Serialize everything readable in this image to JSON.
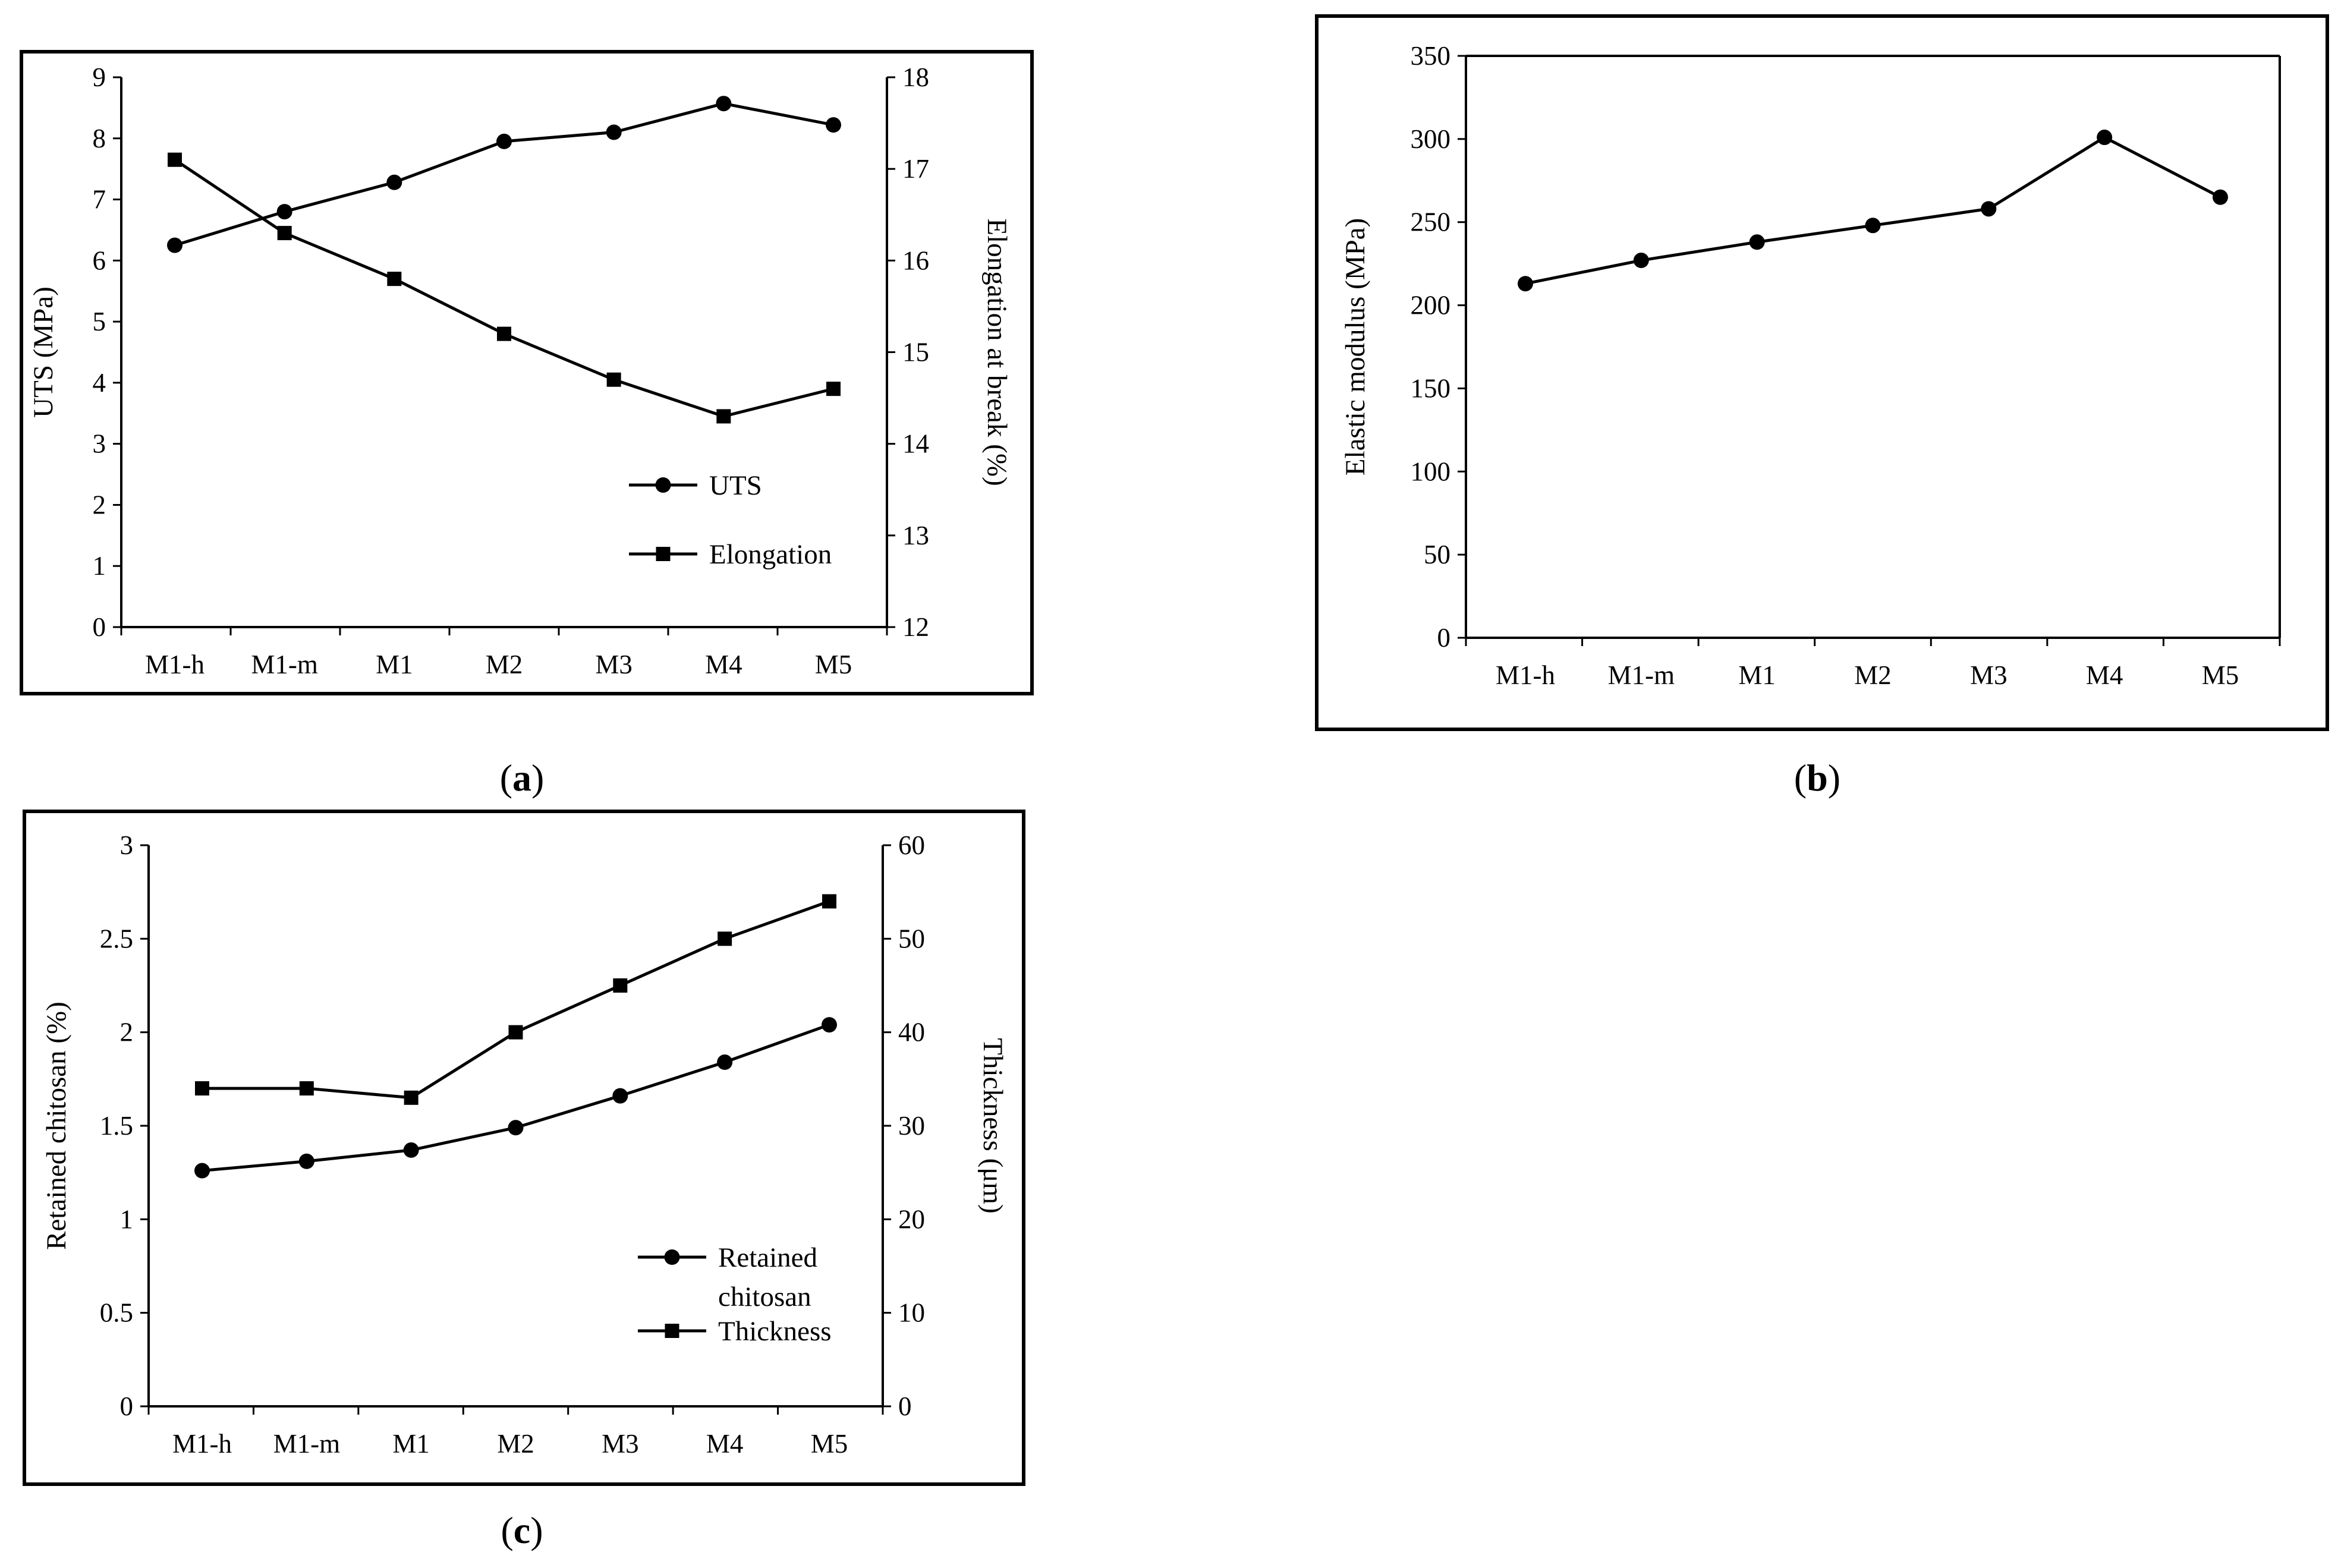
{
  "figure": {
    "colors": {
      "line": "#000000",
      "frame": "#000000",
      "background": "#ffffff"
    },
    "panel_labels": [
      {
        "prefix": "(",
        "letter": "a",
        "suffix": ")"
      },
      {
        "prefix": "(",
        "letter": "b",
        "suffix": ")"
      },
      {
        "prefix": "(",
        "letter": "c",
        "suffix": ")"
      }
    ]
  },
  "chart_data": [
    {
      "id": "a",
      "type": "line",
      "categories": [
        "M1-h",
        "M1-m",
        "M1",
        "M2",
        "M3",
        "M4",
        "M5"
      ],
      "title": "",
      "xlabel": "",
      "ylabel": "UTS (MPa)",
      "y2label": "Elongation at break (%)",
      "ylim": [
        0,
        9
      ],
      "yticks": [
        "0",
        "1",
        "2",
        "3",
        "4",
        "5",
        "6",
        "7",
        "8",
        "9"
      ],
      "y2lim": [
        12,
        18
      ],
      "y2ticks": [
        "12",
        "13",
        "14",
        "15",
        "16",
        "17",
        "18"
      ],
      "grid": false,
      "legend_position": "bottom-right",
      "series": [
        {
          "name": "UTS",
          "marker": "circle",
          "axis": "left",
          "values": [
            6.25,
            6.8,
            7.28,
            7.95,
            8.1,
            8.57,
            8.22
          ]
        },
        {
          "name": "Elongation",
          "marker": "square",
          "axis": "right",
          "values": [
            17.1,
            16.3,
            15.8,
            15.2,
            14.7,
            14.3,
            14.6
          ]
        }
      ]
    },
    {
      "id": "b",
      "type": "line",
      "categories": [
        "M1-h",
        "M1-m",
        "M1",
        "M2",
        "M3",
        "M4",
        "M5"
      ],
      "title": "",
      "xlabel": "",
      "ylabel": "Elastic modulus (MPa)",
      "ylim": [
        0,
        350
      ],
      "yticks": [
        "0",
        "50",
        "100",
        "150",
        "200",
        "250",
        "300",
        "350"
      ],
      "grid": false,
      "legend_position": "none",
      "series": [
        {
          "name": "Elastic modulus",
          "marker": "circle",
          "axis": "left",
          "values": [
            213,
            227,
            238,
            248,
            258,
            301,
            265
          ]
        }
      ]
    },
    {
      "id": "c",
      "type": "line",
      "categories": [
        "M1-h",
        "M1-m",
        "M1",
        "M2",
        "M3",
        "M4",
        "M5"
      ],
      "title": "",
      "xlabel": "",
      "ylabel": "Retained chitosan (%)",
      "y2label": "Thickness (μm)",
      "ylim": [
        0,
        3
      ],
      "yticks": [
        "0",
        "0.5",
        "1",
        "1.5",
        "2",
        "2.5",
        "3"
      ],
      "y2lim": [
        0,
        60
      ],
      "y2ticks": [
        "0",
        "10",
        "20",
        "30",
        "40",
        "50",
        "60"
      ],
      "grid": false,
      "legend_position": "bottom-right",
      "series": [
        {
          "name": "Retained chitosan",
          "legend_lines": [
            "Retained",
            "chitosan"
          ],
          "marker": "circle",
          "axis": "left",
          "values": [
            1.26,
            1.31,
            1.37,
            1.49,
            1.66,
            1.84,
            2.04
          ]
        },
        {
          "name": "Thickness",
          "marker": "square",
          "axis": "right",
          "values": [
            34,
            34,
            33,
            40,
            45,
            50,
            54
          ]
        }
      ]
    }
  ]
}
